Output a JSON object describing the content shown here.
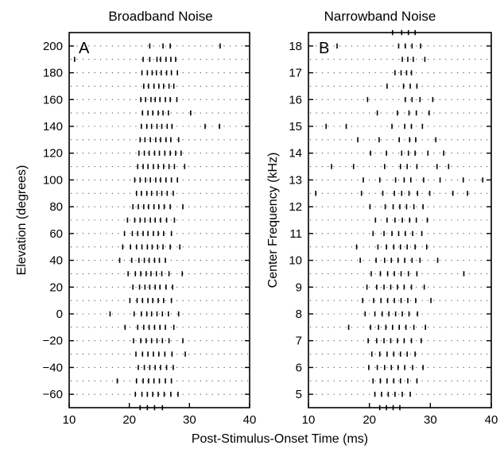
{
  "chart_data": [
    {
      "type": "scatter",
      "panel": "A",
      "title": "Broadband Noise",
      "xlabel": "Post-Stimulus-Onset Time (ms)",
      "ylabel": "Elevation (degrees)",
      "xlim": [
        10,
        40
      ],
      "ylim": [
        -70,
        210
      ],
      "x_ticks": [
        10,
        20,
        30,
        40
      ],
      "y_ticks": [
        -60,
        -40,
        -20,
        0,
        20,
        40,
        60,
        80,
        100,
        120,
        140,
        160,
        180,
        200
      ],
      "row_step": 10,
      "grid": "dotted horizontal rows",
      "legend": "none",
      "spike_rows": [
        {
          "y": 200,
          "times": [
            23.4,
            25.6,
            26.8,
            35.1
          ]
        },
        {
          "y": 190,
          "times": [
            22.3,
            23.4,
            24.6,
            25.2,
            26.1,
            26.9,
            27.7,
            10.9
          ]
        },
        {
          "y": 180,
          "times": [
            22.1,
            23.0,
            23.8,
            24.5,
            25.3,
            26.2,
            27.0,
            28.0
          ]
        },
        {
          "y": 170,
          "times": [
            22.4,
            23.2,
            24.1,
            24.9,
            25.7,
            26.6,
            27.4
          ]
        },
        {
          "y": 160,
          "times": [
            21.9,
            22.7,
            23.6,
            24.3,
            25.1,
            26.0,
            26.8,
            27.9
          ]
        },
        {
          "y": 150,
          "times": [
            22.2,
            23.1,
            23.9,
            24.8,
            25.6,
            26.5,
            30.2
          ]
        },
        {
          "y": 140,
          "times": [
            22.0,
            22.9,
            23.7,
            24.6,
            25.4,
            26.3,
            27.1,
            32.6,
            35.0
          ]
        },
        {
          "y": 130,
          "times": [
            21.8,
            22.6,
            23.5,
            24.4,
            25.2,
            26.1,
            26.9,
            28.2
          ]
        },
        {
          "y": 120,
          "times": [
            21.6,
            22.5,
            23.3,
            24.2,
            25.0,
            25.9,
            26.8,
            27.7,
            28.6
          ]
        },
        {
          "y": 110,
          "times": [
            21.4,
            22.3,
            23.1,
            24.0,
            24.8,
            25.7,
            26.6,
            27.5,
            29.2
          ]
        },
        {
          "y": 100,
          "times": [
            20.9,
            21.8,
            22.7,
            23.5,
            24.4,
            25.2,
            26.1,
            27.0,
            28.0
          ]
        },
        {
          "y": 90,
          "times": [
            21.2,
            22.0,
            22.9,
            23.7,
            24.6,
            25.4,
            26.3,
            27.3
          ]
        },
        {
          "y": 80,
          "times": [
            20.6,
            21.5,
            22.4,
            23.2,
            24.1,
            24.9,
            25.8,
            26.8,
            28.9
          ]
        },
        {
          "y": 70,
          "times": [
            19.7,
            20.9,
            21.8,
            22.6,
            23.5,
            24.3,
            25.2,
            26.2,
            27.5
          ]
        },
        {
          "y": 60,
          "times": [
            19.2,
            20.5,
            21.4,
            22.3,
            23.1,
            24.0,
            24.8,
            25.7,
            27.0
          ]
        },
        {
          "y": 50,
          "times": [
            18.9,
            20.2,
            21.2,
            22.1,
            23.0,
            23.8,
            24.7,
            25.6,
            26.8,
            28.4
          ]
        },
        {
          "y": 40,
          "times": [
            18.4,
            20.4,
            21.6,
            22.5,
            23.3,
            24.2,
            25.0,
            26.0
          ]
        },
        {
          "y": 30,
          "times": [
            19.8,
            21.0,
            21.9,
            22.8,
            23.6,
            24.5,
            25.4,
            26.6,
            28.8
          ]
        },
        {
          "y": 20,
          "times": [
            20.6,
            21.7,
            22.6,
            23.4,
            24.3,
            25.1,
            26.1,
            27.2
          ]
        },
        {
          "y": 10,
          "times": [
            20.1,
            21.3,
            22.2,
            23.1,
            23.9,
            24.8,
            25.7,
            27.0
          ]
        },
        {
          "y": 0,
          "times": [
            16.8,
            20.8,
            22.0,
            22.9,
            23.7,
            24.6,
            25.5,
            26.5,
            28.2
          ]
        },
        {
          "y": -10,
          "times": [
            19.3,
            21.4,
            22.4,
            23.3,
            24.2,
            25.1,
            26.0,
            27.4
          ]
        },
        {
          "y": -20,
          "times": [
            20.7,
            21.9,
            22.8,
            23.7,
            24.6,
            25.5,
            26.6,
            28.9
          ]
        },
        {
          "y": -30,
          "times": [
            21.1,
            22.2,
            23.1,
            24.0,
            24.9,
            25.9,
            27.1,
            29.3
          ]
        },
        {
          "y": -40,
          "times": [
            21.5,
            22.5,
            23.4,
            24.3,
            25.2,
            26.2,
            27.3
          ]
        },
        {
          "y": -50,
          "times": [
            18.0,
            21.2,
            22.3,
            23.2,
            24.1,
            25.0,
            26.0,
            27.0
          ]
        },
        {
          "y": -60,
          "times": [
            21.0,
            22.1,
            23.0,
            23.9,
            24.8,
            25.8,
            26.9,
            28.1
          ]
        },
        {
          "y": -70,
          "times": [
            21.8,
            23.0,
            24.2,
            25.5
          ]
        }
      ]
    },
    {
      "type": "scatter",
      "panel": "B",
      "title": "Narrowband Noise",
      "xlabel": "Post-Stimulus-Onset Time (ms)",
      "ylabel": "Center Frequency (kHz)",
      "xlim": [
        10,
        40
      ],
      "ylim": [
        4.5,
        18.5
      ],
      "x_ticks": [
        10,
        20,
        30,
        40
      ],
      "y_ticks": [
        5,
        6,
        7,
        8,
        9,
        10,
        11,
        12,
        13,
        14,
        15,
        16,
        17,
        18
      ],
      "row_step": 0.5,
      "grid": "dotted horizontal rows",
      "legend": "none",
      "spike_rows": [
        {
          "y": 18.5,
          "times": [
            23.8,
            25.3,
            26.4,
            27.5
          ]
        },
        {
          "y": 18.0,
          "times": [
            24.8,
            25.9,
            27.0,
            28.4,
            14.7
          ]
        },
        {
          "y": 17.5,
          "times": [
            25.4,
            26.3,
            27.2,
            29.1
          ]
        },
        {
          "y": 17.0,
          "times": [
            25.2,
            26.1,
            26.9,
            24.2
          ]
        },
        {
          "y": 16.5,
          "times": [
            25.6,
            26.7,
            27.8,
            22.9
          ]
        },
        {
          "y": 16.0,
          "times": [
            25.9,
            27.0,
            28.3,
            19.7,
            30.4
          ]
        },
        {
          "y": 15.5,
          "times": [
            24.6,
            26.5,
            27.7,
            21.3,
            29.8
          ]
        },
        {
          "y": 15.0,
          "times": [
            12.9,
            16.2,
            23.7,
            25.8,
            26.9,
            28.7
          ]
        },
        {
          "y": 14.5,
          "times": [
            18.1,
            21.6,
            24.9,
            26.6,
            27.6,
            30.9
          ]
        },
        {
          "y": 14.0,
          "times": [
            20.2,
            22.8,
            25.3,
            26.4,
            27.5,
            29.6,
            32.2
          ]
        },
        {
          "y": 13.5,
          "times": [
            13.8,
            17.4,
            22.5,
            25.1,
            26.2,
            27.8,
            31.1,
            33.0
          ]
        },
        {
          "y": 13.0,
          "times": [
            19.0,
            21.7,
            24.3,
            25.7,
            26.8,
            28.9,
            31.6,
            35.4,
            38.6
          ]
        },
        {
          "y": 12.5,
          "times": [
            11.2,
            18.7,
            22.2,
            24.1,
            25.3,
            26.5,
            27.9,
            29.9,
            33.7,
            36.1
          ]
        },
        {
          "y": 12.0,
          "times": [
            20.1,
            22.6,
            23.9,
            25.0,
            26.1,
            27.3,
            28.8
          ]
        },
        {
          "y": 11.5,
          "times": [
            21.0,
            22.9,
            24.2,
            25.4,
            26.6,
            27.7,
            29.5
          ]
        },
        {
          "y": 11.0,
          "times": [
            20.6,
            22.4,
            23.7,
            24.8,
            25.9,
            27.1,
            28.6
          ]
        },
        {
          "y": 10.5,
          "times": [
            17.9,
            21.4,
            22.8,
            24.0,
            25.1,
            26.2,
            27.5,
            29.4
          ]
        },
        {
          "y": 10.0,
          "times": [
            18.5,
            21.1,
            22.5,
            23.6,
            24.7,
            25.8,
            27.0,
            28.3,
            31.2
          ]
        },
        {
          "y": 9.5,
          "times": [
            20.3,
            21.8,
            23.0,
            24.1,
            25.2,
            26.4,
            27.8,
            35.5
          ]
        },
        {
          "y": 9.0,
          "times": [
            19.6,
            21.2,
            22.4,
            23.5,
            24.6,
            25.7,
            26.9,
            29.0
          ]
        },
        {
          "y": 8.5,
          "times": [
            18.9,
            20.7,
            21.9,
            23.0,
            24.1,
            25.2,
            26.3,
            27.6,
            30.1
          ]
        },
        {
          "y": 8.0,
          "times": [
            19.3,
            20.9,
            22.1,
            23.2,
            24.3,
            25.4,
            26.5,
            27.9
          ]
        },
        {
          "y": 7.5,
          "times": [
            16.6,
            20.2,
            21.5,
            22.7,
            23.8,
            24.9,
            26.0,
            27.3,
            29.2
          ]
        },
        {
          "y": 7.0,
          "times": [
            19.8,
            21.2,
            22.4,
            23.5,
            24.6,
            25.7,
            26.9,
            28.5
          ]
        },
        {
          "y": 6.5,
          "times": [
            20.4,
            21.7,
            22.9,
            24.0,
            25.1,
            26.2,
            27.5
          ]
        },
        {
          "y": 6.0,
          "times": [
            19.9,
            21.3,
            22.5,
            23.6,
            24.7,
            25.8,
            27.1,
            28.8
          ]
        },
        {
          "y": 5.5,
          "times": [
            20.6,
            21.8,
            22.9,
            24.0,
            25.1,
            26.3,
            27.8
          ]
        },
        {
          "y": 5.0,
          "times": [
            20.9,
            22.0,
            23.1,
            24.2,
            25.4,
            26.7
          ]
        },
        {
          "y": 4.5,
          "times": [
            21.7,
            22.8,
            23.9,
            25.0
          ]
        }
      ]
    }
  ]
}
